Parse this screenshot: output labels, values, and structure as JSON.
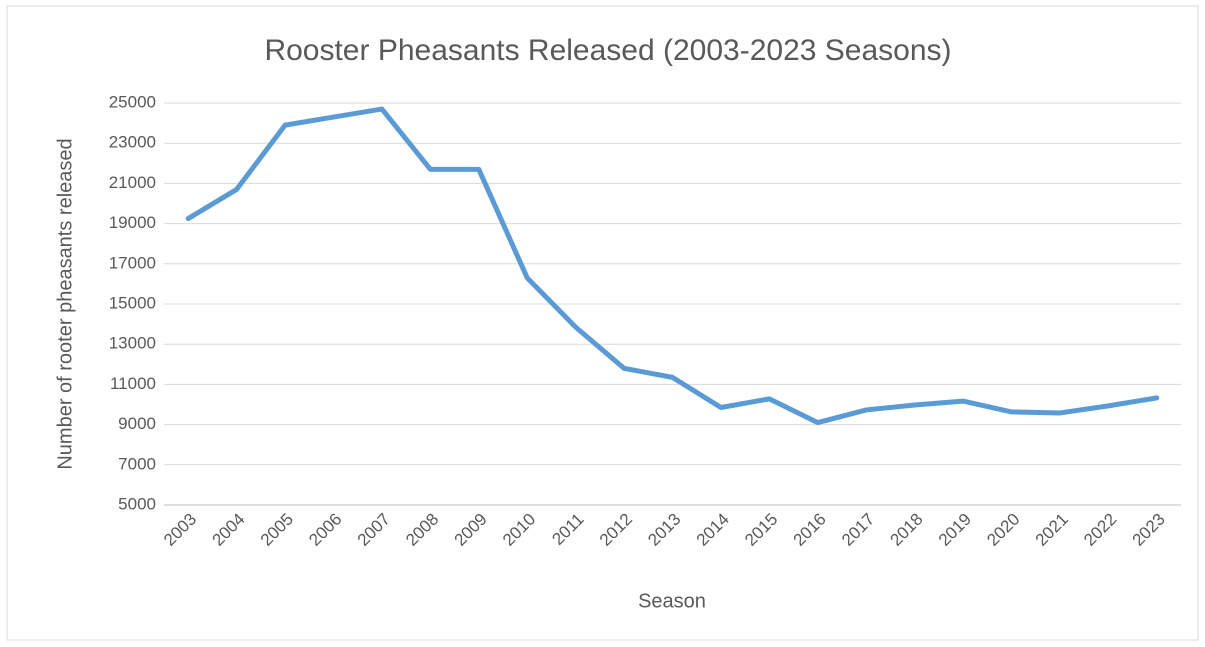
{
  "chart_data": {
    "type": "line",
    "title": "Rooster Pheasants Released (2003-2023 Seasons)",
    "x_label": "Season",
    "y_label": "Number of rooter pheasants released",
    "categories": [
      "2003",
      "2004",
      "2005",
      "2006",
      "2007",
      "2008",
      "2009",
      "2010",
      "2011",
      "2012",
      "2013",
      "2014",
      "2015",
      "2016",
      "2017",
      "2018",
      "2019",
      "2020",
      "2021",
      "2022",
      "2023"
    ],
    "series": [
      {
        "name": "Rooster pheasants released",
        "color": "#5b9bd5",
        "values": [
          19250,
          20700,
          23900,
          24300,
          24700,
          21700,
          21700,
          16300,
          13850,
          11800,
          11350,
          9850,
          10280,
          9100,
          9730,
          9975,
          10170,
          9630,
          9580,
          9930,
          10330
        ]
      }
    ],
    "ylim": [
      5000,
      25000
    ],
    "yticks": [
      5000,
      7000,
      9000,
      11000,
      13000,
      15000,
      17000,
      19000,
      21000,
      23000,
      25000
    ],
    "grid": true
  }
}
